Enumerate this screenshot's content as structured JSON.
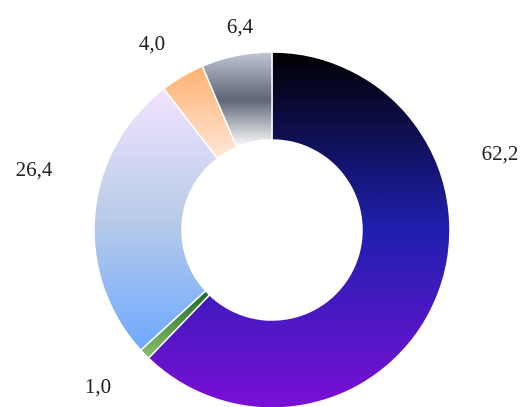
{
  "chart_data": {
    "type": "pie",
    "donut": true,
    "title": "",
    "legend": "none",
    "slices": [
      {
        "label": "62,2",
        "value": 62.2,
        "colors": [
          "#000000",
          "#1f1faf",
          "#7b0fd6"
        ]
      },
      {
        "label": "1,0",
        "value": 1.0,
        "colors": [
          "#1e6b2a",
          "#8fc06b"
        ]
      },
      {
        "label": "26,4",
        "value": 26.4,
        "colors": [
          "#f2e4ff",
          "#b8cbe8",
          "#6ea9ff"
        ]
      },
      {
        "label": "4,0",
        "value": 4.0,
        "colors": [
          "#ffb070",
          "#ffe8d8"
        ]
      },
      {
        "label": "6,4",
        "value": 6.4,
        "colors": [
          "#c0c6d4",
          "#5d6677",
          "#ffffff"
        ]
      }
    ]
  }
}
